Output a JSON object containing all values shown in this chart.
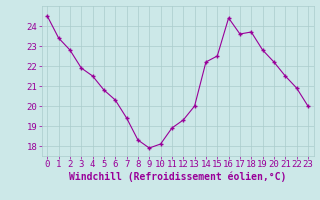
{
  "x": [
    0,
    1,
    2,
    3,
    4,
    5,
    6,
    7,
    8,
    9,
    10,
    11,
    12,
    13,
    14,
    15,
    16,
    17,
    18,
    19,
    20,
    21,
    22,
    23
  ],
  "y": [
    24.5,
    23.4,
    22.8,
    21.9,
    21.5,
    20.8,
    20.3,
    19.4,
    18.3,
    17.9,
    18.1,
    18.9,
    19.3,
    20.0,
    22.2,
    22.5,
    24.4,
    23.6,
    23.7,
    22.8,
    22.2,
    21.5,
    20.9,
    20.0
  ],
  "line_color": "#990099",
  "marker": "+",
  "bg_color": "#cce8e8",
  "grid_color": "#aacccc",
  "xlabel": "Windchill (Refroidissement éolien,°C)",
  "ylabel": "",
  "ylim": [
    17.5,
    25.0
  ],
  "xlim": [
    -0.5,
    23.5
  ],
  "yticks": [
    18,
    19,
    20,
    21,
    22,
    23,
    24
  ],
  "xticks": [
    0,
    1,
    2,
    3,
    4,
    5,
    6,
    7,
    8,
    9,
    10,
    11,
    12,
    13,
    14,
    15,
    16,
    17,
    18,
    19,
    20,
    21,
    22,
    23
  ],
  "tick_color": "#990099",
  "label_color": "#990099",
  "font_size": 6.5,
  "xlabel_fontsize": 7.0,
  "fig_width": 3.2,
  "fig_height": 2.0,
  "dpi": 100
}
